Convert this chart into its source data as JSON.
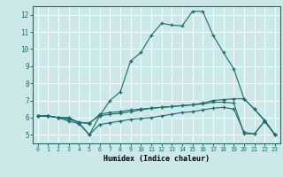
{
  "xlabel": "Humidex (Indice chaleur)",
  "bg_color": "#cde8e8",
  "line_color": "#1a6b6b",
  "grid_color": "#ffffff",
  "xlim": [
    -0.5,
    23.5
  ],
  "ylim": [
    4.5,
    12.5
  ],
  "xticks": [
    0,
    1,
    2,
    3,
    4,
    5,
    6,
    7,
    8,
    9,
    10,
    11,
    12,
    13,
    14,
    15,
    16,
    17,
    18,
    19,
    20,
    21,
    22,
    23
  ],
  "yticks": [
    5,
    6,
    7,
    8,
    9,
    10,
    11,
    12
  ],
  "series": [
    {
      "x": [
        0,
        1,
        2,
        3,
        4,
        5,
        6,
        7,
        8,
        9,
        10,
        11,
        12,
        13,
        14,
        15,
        16,
        17,
        18,
        19,
        20,
        21,
        22,
        23
      ],
      "y": [
        6.1,
        6.1,
        6.0,
        6.0,
        5.7,
        5.0,
        6.1,
        7.0,
        7.5,
        9.3,
        9.8,
        10.8,
        11.5,
        11.4,
        11.35,
        12.2,
        12.2,
        10.8,
        9.8,
        8.85,
        7.1,
        6.5,
        5.8,
        5.0
      ]
    },
    {
      "x": [
        0,
        1,
        2,
        3,
        4,
        5,
        6,
        7,
        8,
        9,
        10,
        11,
        12,
        13,
        14,
        15,
        16,
        17,
        18,
        19,
        20,
        21,
        22,
        23
      ],
      "y": [
        6.1,
        6.1,
        6.0,
        6.0,
        5.7,
        5.7,
        6.1,
        6.2,
        6.25,
        6.35,
        6.45,
        6.55,
        6.6,
        6.65,
        6.7,
        6.75,
        6.85,
        7.0,
        7.05,
        7.1,
        7.1,
        6.5,
        5.85,
        5.0
      ]
    },
    {
      "x": [
        0,
        1,
        2,
        3,
        4,
        5,
        6,
        7,
        8,
        9,
        10,
        11,
        12,
        13,
        14,
        15,
        16,
        17,
        18,
        19,
        20,
        21,
        22,
        23
      ],
      "y": [
        6.1,
        6.1,
        6.0,
        5.8,
        5.65,
        5.0,
        5.6,
        5.7,
        5.8,
        5.9,
        5.95,
        6.0,
        6.1,
        6.2,
        6.3,
        6.35,
        6.45,
        6.55,
        6.6,
        6.5,
        5.15,
        5.05,
        5.8,
        5.0
      ]
    },
    {
      "x": [
        0,
        1,
        2,
        3,
        4,
        5,
        6,
        7,
        8,
        9,
        10,
        11,
        12,
        13,
        14,
        15,
        16,
        17,
        18,
        19,
        20,
        21,
        22,
        23
      ],
      "y": [
        6.1,
        6.1,
        6.0,
        5.9,
        5.75,
        5.65,
        6.2,
        6.3,
        6.35,
        6.45,
        6.5,
        6.55,
        6.6,
        6.65,
        6.7,
        6.75,
        6.8,
        6.9,
        6.9,
        6.85,
        5.05,
        5.05,
        5.8,
        5.0
      ]
    }
  ]
}
